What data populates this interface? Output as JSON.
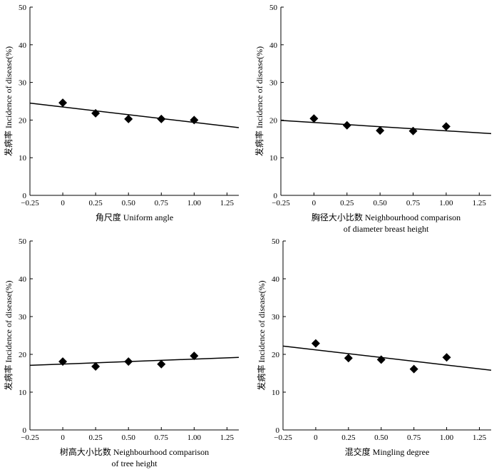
{
  "chart_data": [
    {
      "type": "scatter",
      "xlabel": "角尺度 Uniform angle",
      "ylabel": "发病率 Incidence of disease(%)",
      "xlim": [
        -0.25,
        1.34
      ],
      "ylim": [
        0,
        50
      ],
      "xticks": [
        "−0.25",
        "0",
        "0.25",
        "0.50",
        "0.75",
        "1.00",
        "1.25"
      ],
      "yticks": [
        "0",
        "10",
        "20",
        "30",
        "40",
        "50"
      ],
      "x": [
        0,
        0.25,
        0.5,
        0.75,
        1.0
      ],
      "y": [
        24.6,
        21.8,
        20.3,
        20.3,
        20.0
      ],
      "trendline": {
        "x": [
          -0.25,
          1.34
        ],
        "y": [
          24.5,
          18.0
        ]
      }
    },
    {
      "type": "scatter",
      "xlabel": "胸径大小比数 Neighbourhood comparison",
      "xlabel2": "of diameter breast height",
      "ylabel": "发病率 Incidence of disease(%)",
      "xlim": [
        -0.25,
        1.34
      ],
      "ylim": [
        0,
        50
      ],
      "xticks": [
        "−0.25",
        "0",
        "0.25",
        "0.50",
        "0.75",
        "1.00",
        "1.25"
      ],
      "yticks": [
        "0",
        "10",
        "20",
        "30",
        "40",
        "50"
      ],
      "x": [
        0,
        0.25,
        0.5,
        0.75,
        1.0
      ],
      "y": [
        20.4,
        18.6,
        17.2,
        17.1,
        18.3
      ],
      "trendline": {
        "x": [
          -0.25,
          1.34
        ],
        "y": [
          19.9,
          16.4
        ]
      }
    },
    {
      "type": "scatter",
      "xlabel": "树高大小比数 Neighbourhood comparison",
      "xlabel2": "of tree height",
      "ylabel": "发病率 Incidence of disease(%)",
      "xlim": [
        -0.25,
        1.34
      ],
      "ylim": [
        0,
        50
      ],
      "xticks": [
        "−0.25",
        "0",
        "0.25",
        "0.50",
        "0.75",
        "1.00",
        "1.25"
      ],
      "yticks": [
        "0",
        "10",
        "20",
        "30",
        "40",
        "50"
      ],
      "x": [
        0,
        0.25,
        0.5,
        0.75,
        1.0
      ],
      "y": [
        18.1,
        16.8,
        18.1,
        17.4,
        19.6
      ],
      "trendline": {
        "x": [
          -0.25,
          1.34
        ],
        "y": [
          17.1,
          19.2
        ]
      }
    },
    {
      "type": "scatter",
      "xlabel": "混交度  Mingling degree",
      "ylabel": "发病率 Incidence of disease(%)",
      "xlim": [
        -0.25,
        1.34
      ],
      "ylim": [
        0,
        50
      ],
      "xticks": [
        "−0.25",
        "0",
        "0.25",
        "0.50",
        "0.75",
        "1.00",
        "1.25"
      ],
      "yticks": [
        "0",
        "10",
        "20",
        "30",
        "40",
        "50"
      ],
      "x": [
        0,
        0.25,
        0.5,
        0.75,
        1.0
      ],
      "y": [
        22.9,
        19.0,
        18.6,
        16.1,
        19.2
      ],
      "trendline": {
        "x": [
          -0.25,
          1.34
        ],
        "y": [
          22.2,
          15.8
        ]
      }
    }
  ]
}
